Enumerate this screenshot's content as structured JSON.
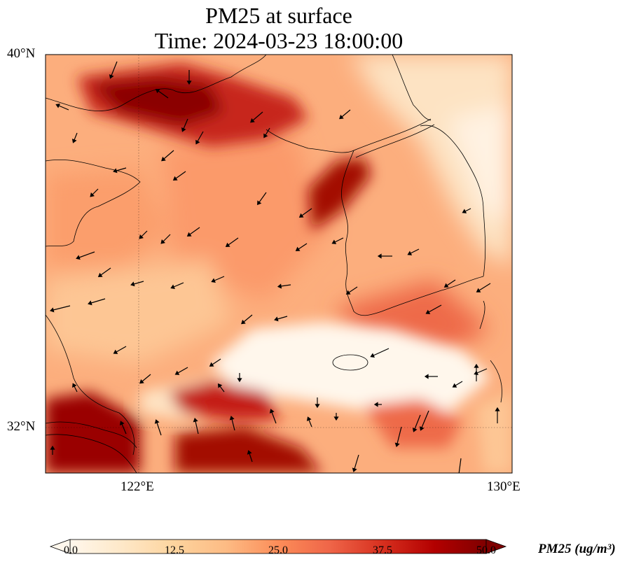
{
  "title": {
    "line1": "PM25 at surface",
    "line2": "Time: 2024-03-23 18:00:00"
  },
  "axes": {
    "lat_labels": [
      {
        "text": "40°N",
        "value": 40
      },
      {
        "text": "32°N",
        "value": 32
      }
    ],
    "lon_labels": [
      {
        "text": "122°E",
        "value": 122
      },
      {
        "text": "130°E",
        "value": 130
      }
    ],
    "lon_range": [
      120,
      130
    ],
    "lat_range": [
      31,
      40
    ],
    "gridlines": "dotted"
  },
  "colorbar": {
    "label": "PM25 (ug/m³)",
    "ticks": [
      "0.0",
      "12.5",
      "25.0",
      "37.5",
      "50.0"
    ],
    "min": 0,
    "max": 50,
    "extend": "both",
    "colormap": [
      "#fff7ec",
      "#fee8c8",
      "#fdd49e",
      "#fdbb84",
      "#fc8d59",
      "#ef6548",
      "#d7301f",
      "#b30000",
      "#7f0000"
    ]
  },
  "chart_data": {
    "type": "heatmap",
    "variable": "PM25",
    "units": "ug/m3",
    "time": "2024-03-23 18:00:00",
    "overlay": "wind vectors",
    "high_concentration_areas": [
      "Bohai Bay / Liaodong coast (north)",
      "west coast of Korean peninsula",
      "Yangtze River Delta (southwest)",
      "East China Sea band south of 32.5°N"
    ],
    "low_concentration_areas": [
      "band around 33°N between 123°E and 128°E",
      "eastern Korean peninsula"
    ]
  }
}
